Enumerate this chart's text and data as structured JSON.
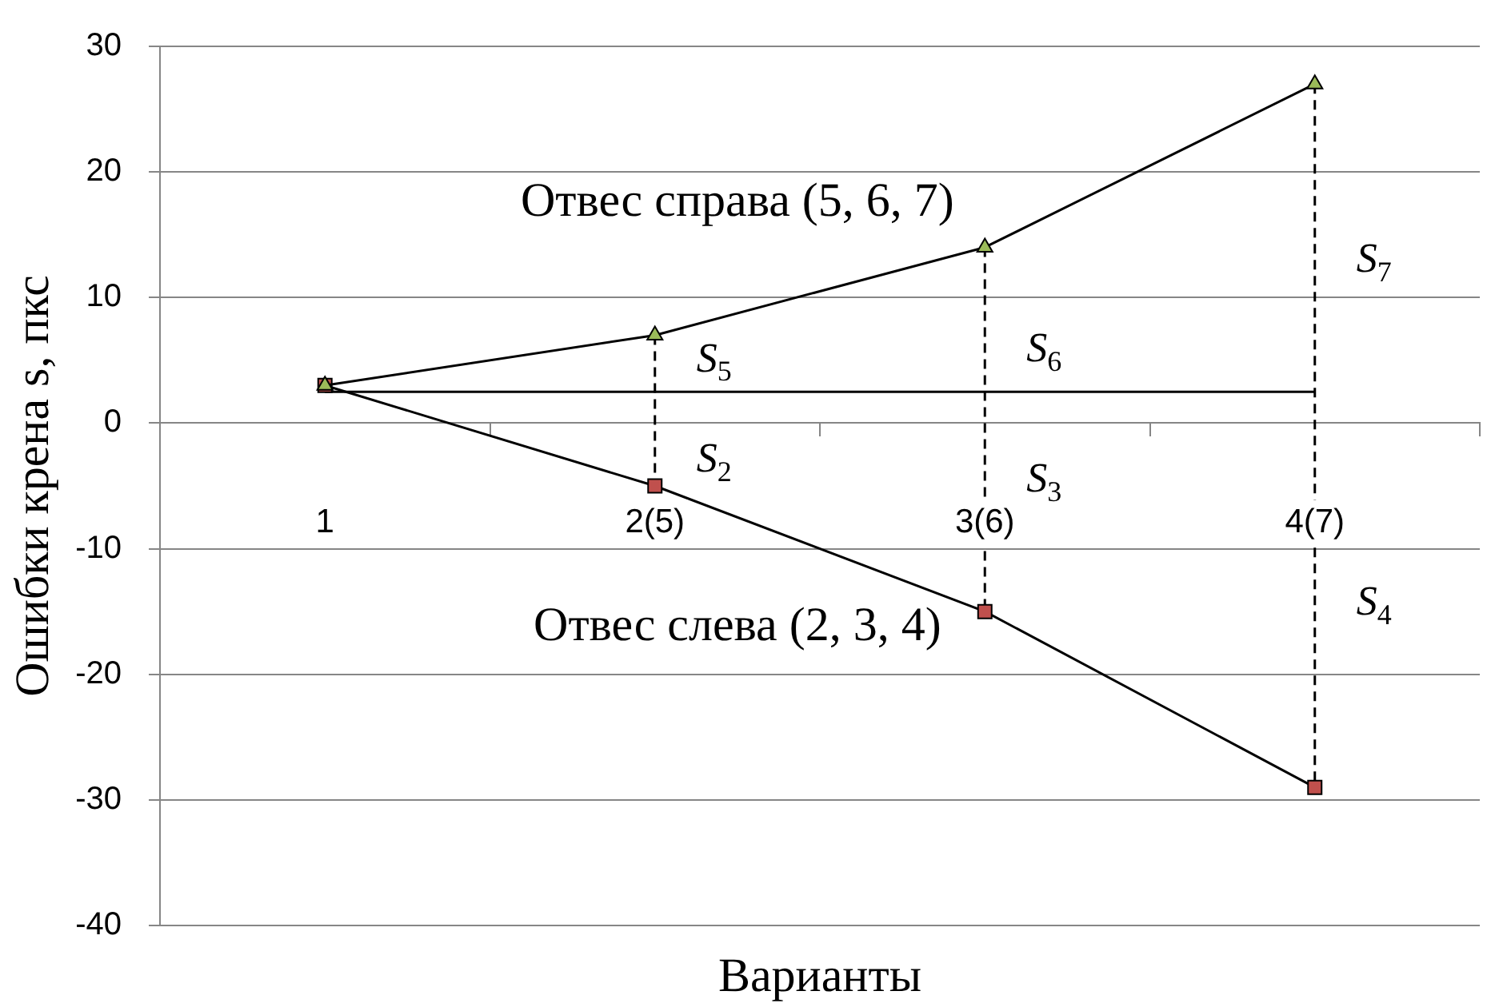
{
  "chart_data": {
    "type": "line",
    "xlabel": "Варианты",
    "ylabel": "Ошибки крена s, пкс",
    "categories": [
      "1",
      "2(5)",
      "3(6)",
      "4(7)"
    ],
    "series": [
      {
        "name": "Отвес справа (5, 6, 7)",
        "color": "#000000",
        "colors": [
          "#9bbb59",
          "#9bbb59",
          "#9bbb59",
          "#9bbb59"
        ],
        "values": [
          3,
          7,
          14,
          27
        ],
        "marker": "triangle"
      },
      {
        "name": "Отвес слева (2, 3, 4)",
        "color": "#000000",
        "colors": [
          "#c0504d",
          "#c0504d",
          "#c0504d",
          "#c0504d"
        ],
        "values": [
          3,
          -5,
          -15,
          -29
        ],
        "marker": "square"
      },
      {
        "color": "#000000",
        "values": [
          2.5,
          2.5,
          2.5,
          2.5
        ],
        "marker": "none"
      },
      {
        "color": "#000000",
        "x": [
          "2(5)",
          "2(5)"
        ],
        "values": [
          7,
          -5
        ],
        "marker": "none",
        "line_style": "dashed"
      },
      {
        "color": "#000000",
        "x": [
          "3(6)",
          "3(6)"
        ],
        "values": [
          14,
          -15
        ],
        "marker": "none",
        "line_style": "dashed"
      },
      {
        "color": "#000000",
        "x": [
          "4(7)",
          "4(7)"
        ],
        "values": [
          27,
          -29
        ],
        "marker": "none",
        "line_style": "dashed"
      }
    ],
    "ylim": [
      -40,
      30
    ],
    "yticks": [
      -40,
      -30,
      -20,
      -10,
      0,
      10,
      20,
      30
    ],
    "grid": "y",
    "line_style": "solid",
    "legend": false,
    "annotations": [
      {
        "text": "S$_{5}$",
        "x": "2(5)",
        "y": 5
      },
      {
        "text": "S$_{2}$",
        "x": "2(5)",
        "y": -3
      },
      {
        "text": "S$_{6}$",
        "x": "3(6)",
        "y": 5.8
      },
      {
        "text": "S$_{3}$",
        "x": "3(6)",
        "y": -4.6
      },
      {
        "text": "S$_{7}$",
        "x": "4(7)",
        "y": 12.9
      },
      {
        "text": "S$_{4}$",
        "x": "4(7)",
        "y": -14.4
      }
    ]
  }
}
